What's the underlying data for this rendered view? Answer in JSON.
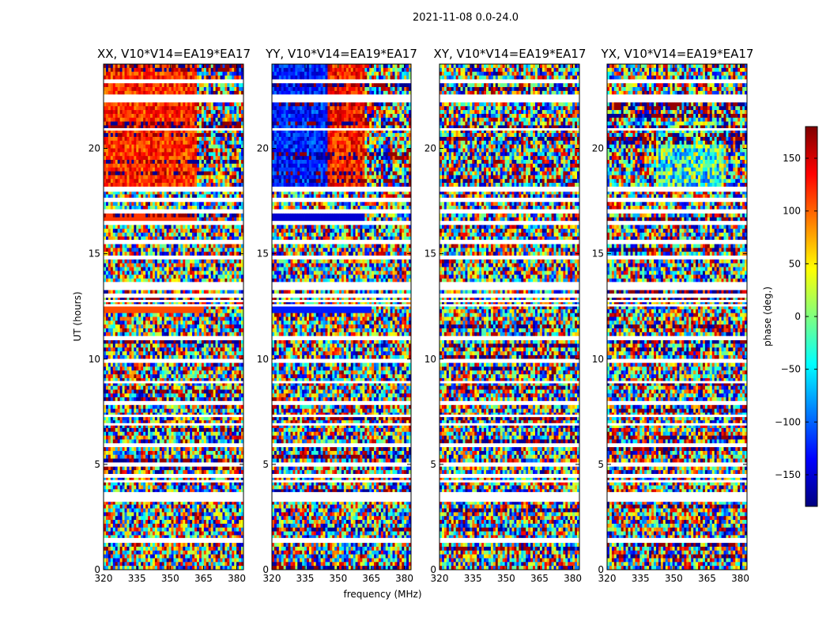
{
  "chart_data": {
    "type": "heatmap",
    "suptitle": "2021-11-08 0.0-24.0",
    "xlabel": "frequency (MHz)",
    "ylabel": "UT (hours)",
    "colorbar": {
      "label": "phase (deg.)",
      "range": [
        -180,
        180
      ],
      "ticks": [
        -150,
        -100,
        -50,
        0,
        50,
        100,
        150
      ],
      "tick_labels": [
        "−150",
        "−100",
        "−50",
        "0",
        "50",
        "100",
        "150"
      ],
      "colormap": "jet",
      "colors": [
        "#00007f",
        "#0000ff",
        "#007fff",
        "#00ffff",
        "#7fff7f",
        "#ffff00",
        "#ff7f00",
        "#ff0000",
        "#7f0000"
      ]
    },
    "xlim": [
      320,
      383
    ],
    "ylim": [
      0,
      24
    ],
    "x_ticks": [
      320,
      335,
      350,
      365,
      380
    ],
    "y_ticks": [
      0,
      5,
      10,
      15,
      20
    ],
    "panels": [
      {
        "title": "XX, V10*V14=EA19*EA17",
        "mode": "warm"
      },
      {
        "title": "YY, V10*V14=EA19*EA17",
        "mode": "split"
      },
      {
        "title": "XY, V10*V14=EA19*EA17",
        "mode": "noise"
      },
      {
        "title": "YX, V10*V14=EA19*EA17",
        "mode": "noise_blue"
      }
    ],
    "flagged_ut_hours": [
      1.35,
      1.45,
      3.28,
      3.38,
      3.55,
      3.63,
      4.2,
      4.45,
      4.95,
      5.9,
      6.9,
      7.3,
      7.95,
      8.9,
      9.95,
      10.95,
      12.55,
      12.75,
      13.05,
      13.4,
      13.6,
      14.8,
      15.6,
      16.5,
      17.05,
      17.6,
      18.0,
      18.05,
      20.9,
      22.3,
      22.5,
      23.2
    ]
  }
}
